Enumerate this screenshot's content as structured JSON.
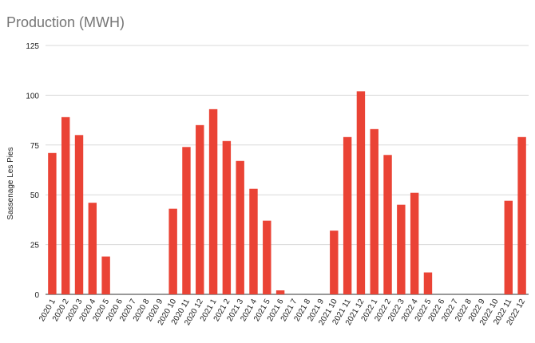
{
  "chart_data": {
    "type": "bar",
    "title": "Production (MWH)",
    "xlabel": "",
    "ylabel": "Sassenage Les Pies",
    "ylim": [
      0,
      125
    ],
    "yticks": [
      0,
      25,
      50,
      75,
      100,
      125
    ],
    "grid": true,
    "legend": "none",
    "bar_color": "#ea4335",
    "categories": [
      "2020 1",
      "2020 2",
      "2020 3",
      "2020 4",
      "2020 5",
      "2020 6",
      "2020 7",
      "2020 8",
      "2020 9",
      "2020 10",
      "2020 11",
      "2020 12",
      "2021 1",
      "2021 2",
      "2021 3",
      "2021 4",
      "2021 5",
      "2021 6",
      "2021 7",
      "2021 8",
      "2021 9",
      "2021 10",
      "2021 11",
      "2021 12",
      "2022 1",
      "2022 2",
      "2022 3",
      "2022 4",
      "2022 5",
      "2022 6",
      "2022 7",
      "2022 8",
      "2022 9",
      "2022 10",
      "2022 11",
      "2022 12"
    ],
    "values": [
      71,
      89,
      80,
      46,
      19,
      0,
      0,
      0,
      0,
      43,
      74,
      85,
      93,
      77,
      67,
      53,
      37,
      2,
      0,
      0,
      0,
      32,
      79,
      102,
      83,
      70,
      45,
      51,
      11,
      0,
      0,
      0,
      0,
      0,
      47,
      79
    ]
  }
}
